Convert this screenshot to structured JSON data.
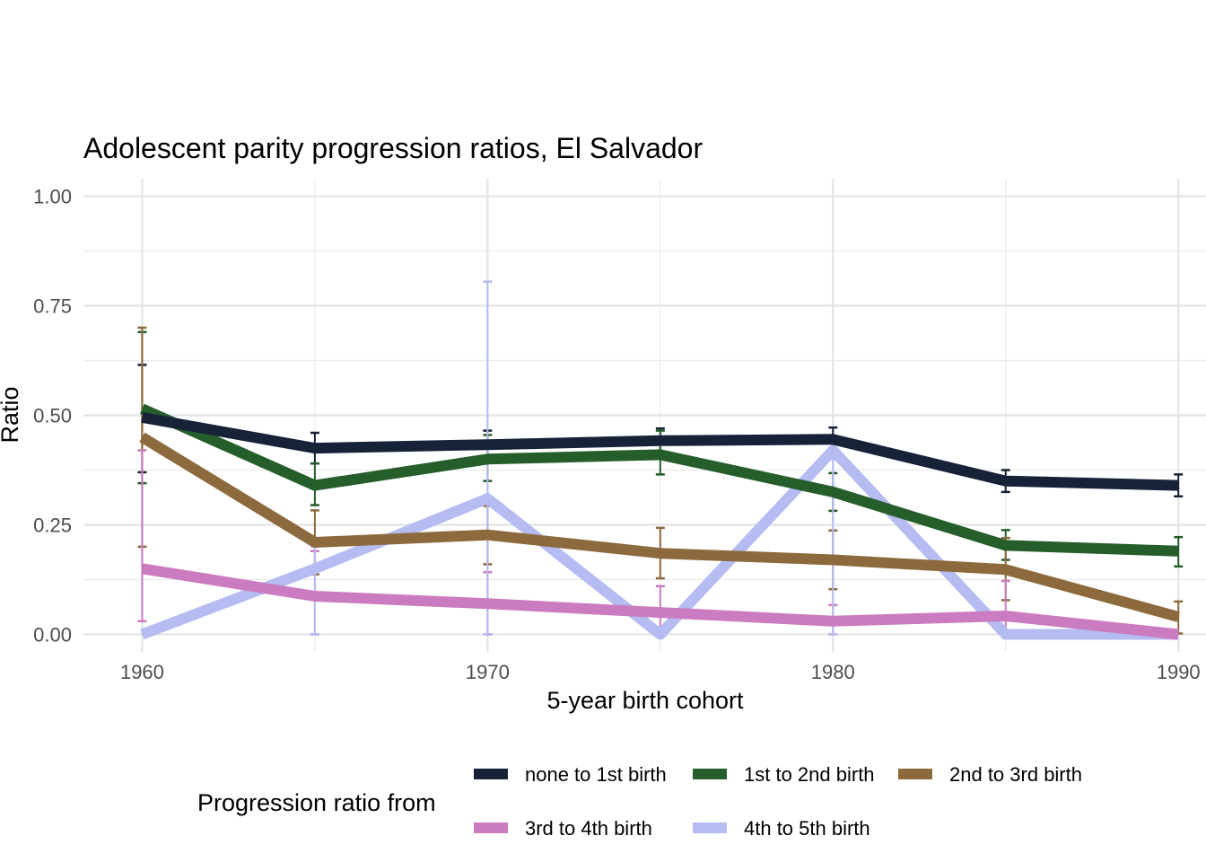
{
  "chart_data": {
    "type": "line",
    "title": "Adolescent parity progression ratios,  El Salvador",
    "xlabel": "5-year birth cohort",
    "ylabel": "Ratio",
    "xlim": [
      1958.3,
      1990.8
    ],
    "ylim": [
      -0.04,
      1.04
    ],
    "x_ticks": [
      1960,
      1970,
      1980,
      1990
    ],
    "x_tick_labels": [
      "1960",
      "1970",
      "1980",
      "1990"
    ],
    "y_ticks": [
      0,
      0.25,
      0.5,
      0.75,
      1.0
    ],
    "y_tick_labels": [
      "0.00",
      "0.25",
      "0.50",
      "0.75",
      "1.00"
    ],
    "x": [
      1960,
      1965,
      1970,
      1975,
      1980,
      1985,
      1990
    ],
    "grid": true,
    "legend": {
      "title": "Progression ratio from",
      "position": "bottom"
    },
    "series": [
      {
        "name": "none to 1st birth",
        "color": "#152238",
        "values": [
          0.495,
          0.425,
          0.433,
          0.442,
          0.445,
          0.35,
          0.34
        ],
        "lower": [
          0.37,
          0.39,
          0.4,
          0.415,
          0.415,
          0.325,
          0.315
        ],
        "upper": [
          0.615,
          0.46,
          0.465,
          0.47,
          0.472,
          0.375,
          0.365
        ]
      },
      {
        "name": "1st to 2nd birth",
        "color": "#255e2b",
        "values": [
          0.515,
          0.34,
          0.4,
          0.41,
          0.325,
          0.203,
          0.19
        ],
        "lower": [
          0.345,
          0.295,
          0.35,
          0.365,
          0.282,
          0.17,
          0.155
        ],
        "upper": [
          0.69,
          0.39,
          0.455,
          0.465,
          0.368,
          0.238,
          0.222
        ]
      },
      {
        "name": "2nd to 3rd birth",
        "color": "#8d6a3d",
        "values": [
          0.45,
          0.21,
          0.227,
          0.185,
          0.17,
          0.148,
          0.04
        ],
        "lower": [
          0.2,
          0.137,
          0.16,
          0.128,
          0.103,
          0.078,
          0.002
        ],
        "upper": [
          0.7,
          0.283,
          0.293,
          0.243,
          0.237,
          0.22,
          0.075
        ]
      },
      {
        "name": "3rd to 4th birth",
        "color": "#cb7cc0",
        "values": [
          0.15,
          0.087,
          0.07,
          0.05,
          0.03,
          0.042,
          0.0
        ],
        "lower": [
          0.03,
          0.0,
          0.0,
          0.0,
          0.0,
          0.0,
          0.0
        ],
        "upper": [
          0.42,
          0.19,
          0.142,
          0.11,
          0.067,
          0.122,
          0.0
        ]
      },
      {
        "name": "4th to 5th birth",
        "color": "#b5bcf2",
        "values": [
          0.0,
          0.15,
          0.31,
          0.0,
          0.42,
          0.0,
          0.0
        ],
        "lower": [
          0.0,
          0.0,
          0.0,
          0.0,
          0.0,
          0.0,
          0.0
        ],
        "upper": [
          0.0,
          0.2,
          0.805,
          0.0,
          0.4,
          0.0,
          0.0
        ]
      }
    ]
  }
}
